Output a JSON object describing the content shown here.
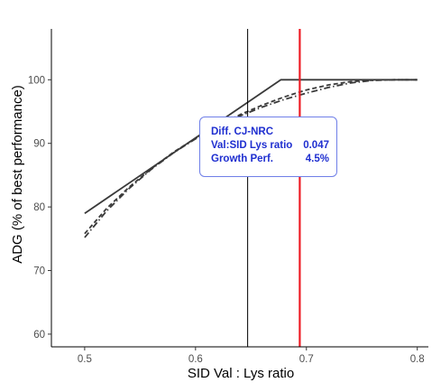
{
  "chart_data": {
    "type": "line",
    "xlabel": "SID Val : Lys ratio",
    "ylabel": "ADG (% of best performance)",
    "xlim": [
      0.47,
      0.81
    ],
    "ylim": [
      58,
      108
    ],
    "x_ticks": [
      0.5,
      0.6,
      0.7,
      0.8
    ],
    "x_tick_labels": [
      "0.5",
      "0.6",
      "0.7",
      "0.8"
    ],
    "y_ticks": [
      60,
      70,
      80,
      90,
      100
    ],
    "y_tick_labels": [
      "60",
      "70",
      "80",
      "90",
      "100"
    ],
    "grid": false,
    "series": [
      {
        "style": "solid",
        "color": "#3a3a3a",
        "x": [
          0.5,
          0.677,
          0.8
        ],
        "y": [
          79,
          100,
          100
        ]
      },
      {
        "style": "dashed",
        "color": "#3a3a3a",
        "x": [
          0.5,
          0.52,
          0.54,
          0.56,
          0.58,
          0.6,
          0.62,
          0.64,
          0.66,
          0.68,
          0.7,
          0.72,
          0.74,
          0.76,
          0.78,
          0.8
        ],
        "y": [
          75.8,
          79.8,
          83.1,
          86.0,
          88.6,
          90.8,
          92.8,
          94.5,
          96.0,
          97.3,
          98.4,
          99.2,
          99.7,
          99.95,
          100.0,
          100.0
        ]
      },
      {
        "style": "dash-dot",
        "color": "#3a3a3a",
        "x": [
          0.5,
          0.52,
          0.54,
          0.56,
          0.58,
          0.6,
          0.62,
          0.64,
          0.66,
          0.68,
          0.7,
          0.72,
          0.74,
          0.76,
          0.78,
          0.8
        ],
        "y": [
          75.2,
          79.4,
          82.9,
          85.9,
          88.5,
          90.7,
          92.6,
          94.3,
          95.7,
          96.9,
          97.9,
          98.8,
          99.5,
          99.9,
          100.0,
          100.0
        ]
      }
    ],
    "vlines": [
      {
        "x": 0.647,
        "color": "#000000"
      },
      {
        "x": 0.694,
        "color": "#ee1c25"
      }
    ],
    "annotation": {
      "title": "Diff. CJ-NRC",
      "rows": [
        {
          "label": "Val:SID Lys ratio",
          "value": "0.047"
        },
        {
          "label": "Growth Perf.",
          "value": "4.5%"
        }
      ],
      "color": "#1f2fd0",
      "border_color": "#6f7fe8"
    }
  }
}
